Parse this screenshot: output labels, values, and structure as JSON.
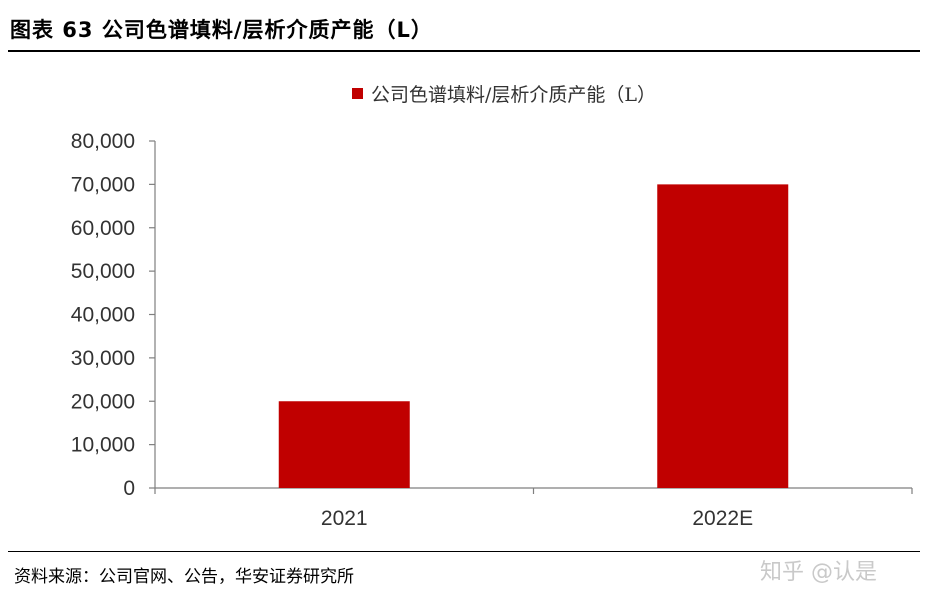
{
  "figure": {
    "title": "图表 63  公司色谱填料/层析介质产能（L）",
    "source": "资料来源：公司官网、公告，华安证券研究所",
    "watermark": "知乎 @认是"
  },
  "chart_data": {
    "type": "bar",
    "categories": [
      "2021",
      "2022E"
    ],
    "series": [
      {
        "name": "公司色谱填料/层析介质产能（L）",
        "values": [
          20000,
          70000
        ],
        "color": "#c00000"
      }
    ],
    "yticks": [
      "0",
      "10,000",
      "20,000",
      "30,000",
      "40,000",
      "50,000",
      "60,000",
      "70,000",
      "80,000"
    ],
    "ylim": [
      0,
      80000
    ],
    "legend_position": "top",
    "grid": false,
    "xlabel": "",
    "ylabel": ""
  }
}
